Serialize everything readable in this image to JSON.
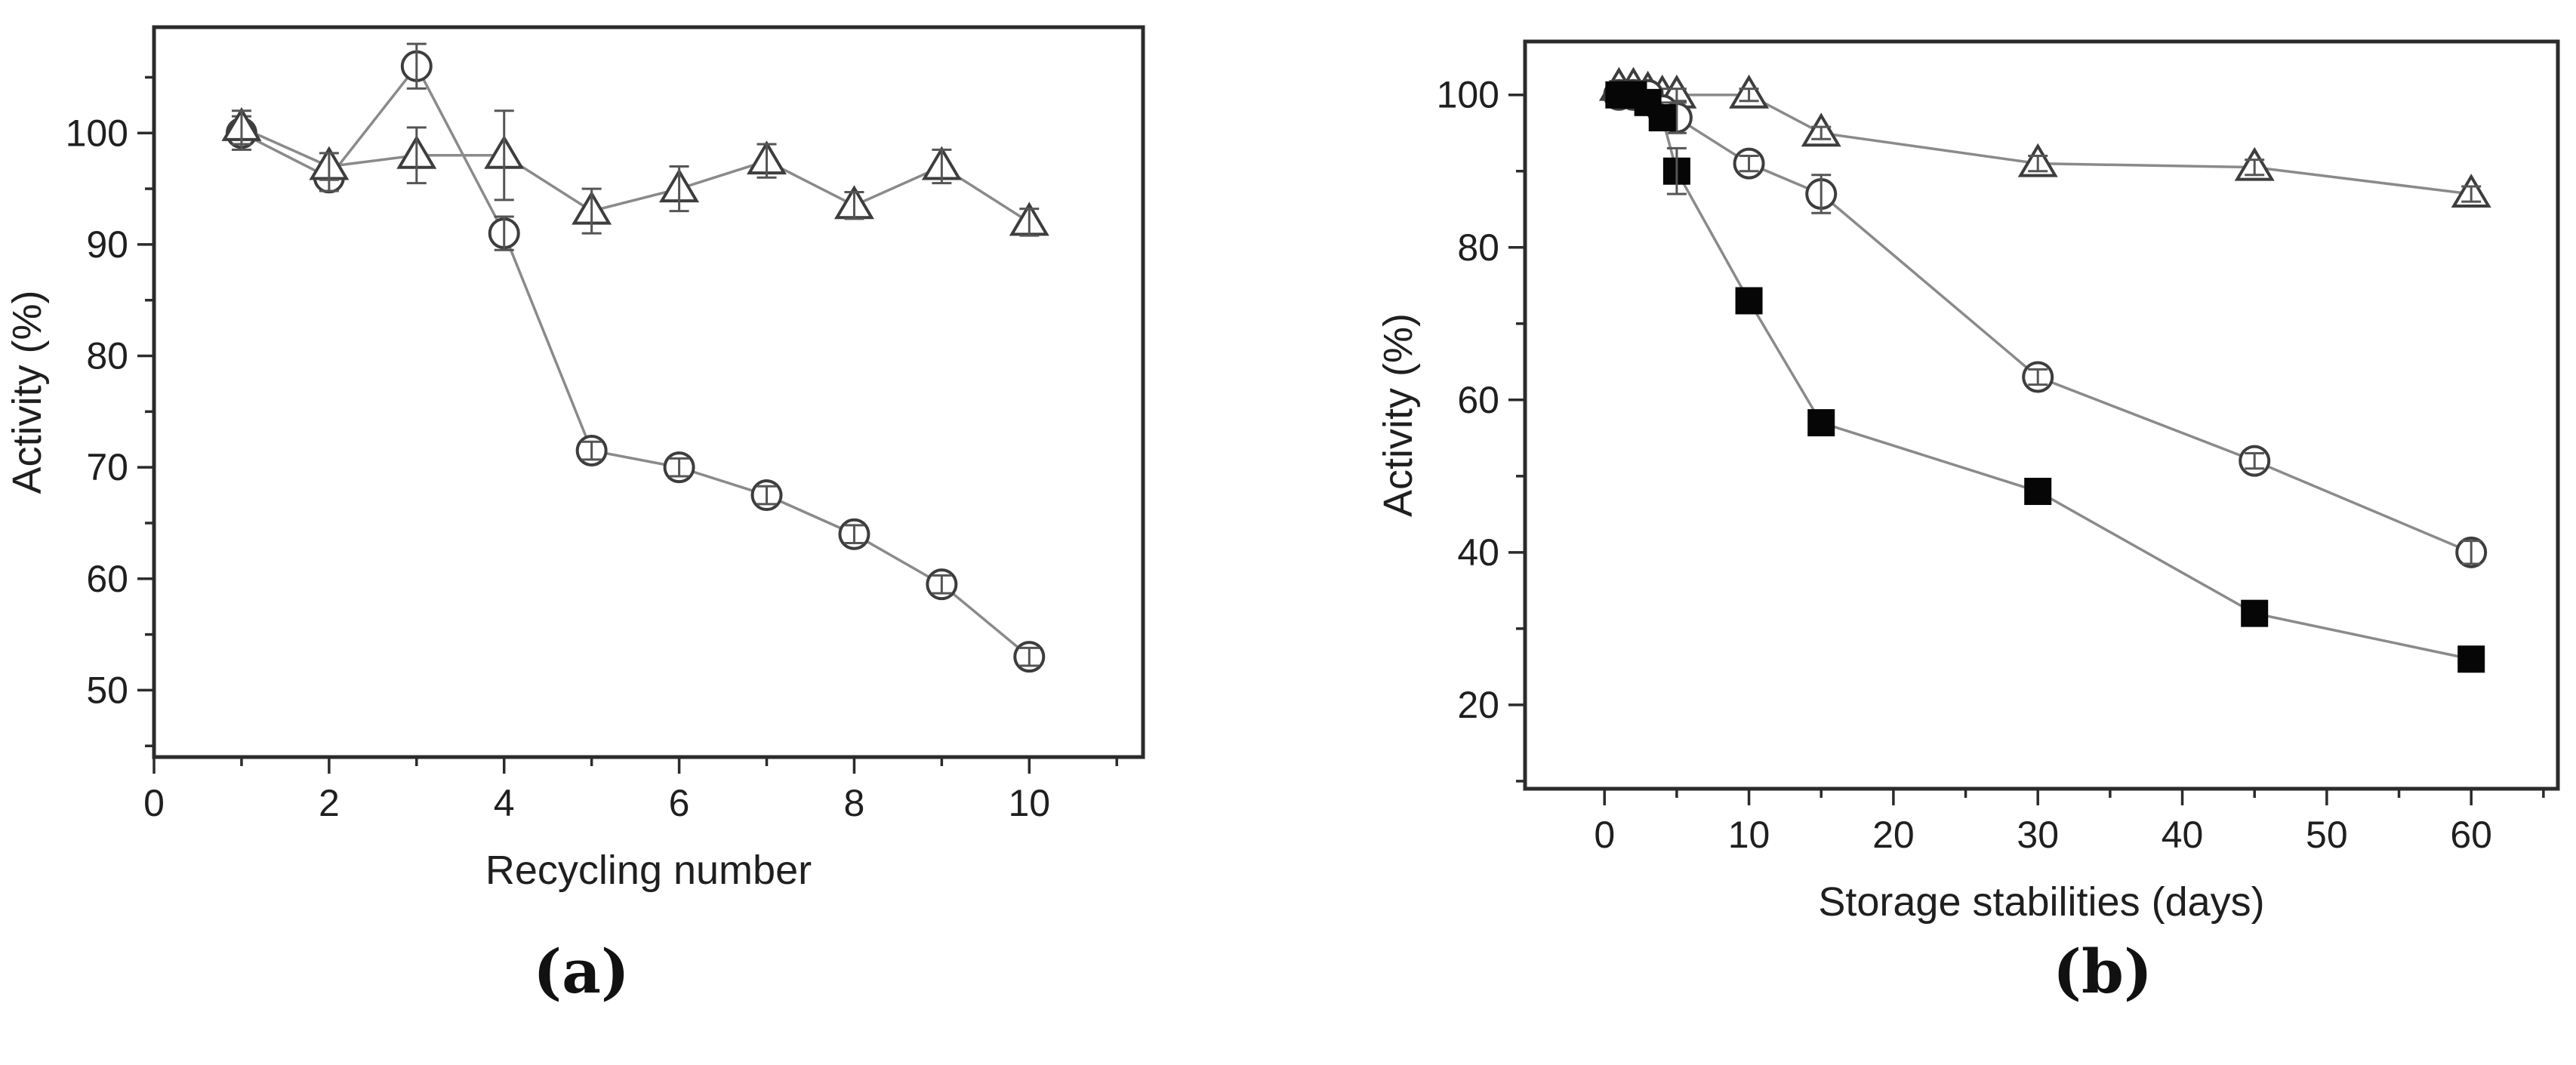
{
  "figure": {
    "captions": {
      "a": "(a)",
      "b": "(b)"
    }
  },
  "colors": {
    "axis": "#2b2b2b",
    "text": "#1f1f1f",
    "series_line": "#8a8a8a",
    "marker_stroke": "#3d3d3d",
    "filled_marker": "#060606",
    "error_bar": "#555555",
    "background": "#ffffff"
  },
  "chart_data": [
    {
      "id": "a",
      "type": "line",
      "title": "",
      "xlabel": "Recycling number",
      "ylabel": "Activity (%)",
      "xlim": [
        0,
        11.3
      ],
      "ylim": [
        44,
        109.5
      ],
      "xticks_major": [
        0,
        2,
        4,
        6,
        8,
        10
      ],
      "xticks_minor": [
        1,
        3,
        5,
        7,
        9,
        11
      ],
      "yticks_major": [
        50,
        60,
        70,
        80,
        90,
        100
      ],
      "yticks_minor": [
        45,
        55,
        65,
        75,
        85,
        95,
        105
      ],
      "grid": false,
      "legend": "none",
      "error_bars": true,
      "x": [
        1,
        2,
        3,
        4,
        5,
        6,
        7,
        8,
        9,
        10
      ],
      "series": [
        {
          "name": "open-circle",
          "marker": "circle-open",
          "values": [
            100,
            96,
            106,
            91,
            71.5,
            70,
            67.5,
            64,
            59.5,
            53
          ],
          "errors": [
            1.5,
            1.2,
            2,
            1.5,
            0.8,
            0.8,
            0.8,
            0.8,
            0.8,
            0.8
          ]
        },
        {
          "name": "open-triangle",
          "marker": "triangle-open",
          "values": [
            100.5,
            97,
            98,
            98,
            93,
            95,
            97.5,
            93.5,
            97,
            92
          ],
          "errors": [
            1.5,
            1.2,
            2.5,
            4,
            2,
            2,
            1.5,
            1.2,
            1.5,
            1.2
          ]
        }
      ]
    },
    {
      "id": "b",
      "type": "line",
      "title": "",
      "xlabel": "Storage stabilities (days)",
      "ylabel": "Activity (%)",
      "xlim": [
        -5.5,
        66
      ],
      "ylim": [
        9,
        107
      ],
      "xticks_major": [
        0,
        10,
        20,
        30,
        40,
        50,
        60
      ],
      "xticks_minor": [
        5,
        15,
        25,
        35,
        45,
        55,
        65
      ],
      "yticks_major": [
        20,
        40,
        60,
        80,
        100
      ],
      "yticks_minor": [
        10,
        30,
        50,
        70,
        90
      ],
      "grid": false,
      "legend": "none",
      "error_bars": true,
      "x": [
        1,
        2,
        3,
        4,
        5,
        10,
        15,
        30,
        45,
        60
      ],
      "series": [
        {
          "name": "open-triangle",
          "marker": "triangle-open",
          "values": [
            101,
            101,
            100.5,
            100,
            100,
            100,
            95,
            91,
            90.5,
            87
          ],
          "errors": [
            0.8,
            0.8,
            0.8,
            0.8,
            0.8,
            0.8,
            0.8,
            1,
            1,
            1
          ]
        },
        {
          "name": "open-circle",
          "marker": "circle-open",
          "values": [
            100,
            100,
            100,
            98,
            97,
            91,
            87,
            63,
            52,
            40
          ],
          "errors": [
            0,
            0,
            0,
            1,
            2,
            1,
            2.5,
            1,
            1,
            1.5
          ]
        },
        {
          "name": "filled-square",
          "marker": "square-filled",
          "values": [
            100,
            100,
            99,
            97,
            90,
            73,
            57,
            48,
            32,
            26
          ],
          "errors": [
            0,
            0,
            0,
            0,
            3,
            0,
            0,
            0,
            0,
            0
          ]
        }
      ]
    }
  ]
}
